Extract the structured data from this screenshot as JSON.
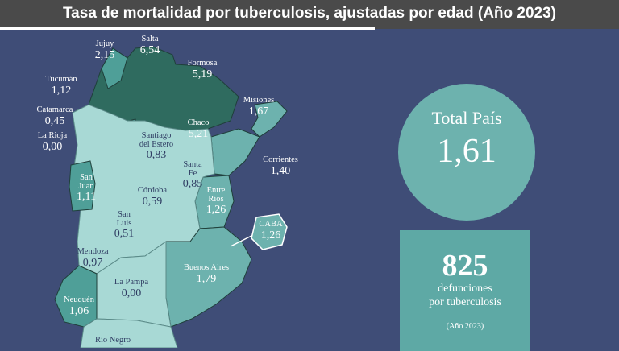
{
  "header": {
    "title": "Tasa de mortalidad por tuberculosis, ajustadas por edad (Año 2023)"
  },
  "colors": {
    "background": "#3f4d77",
    "dark_teal": "#2f6b5f",
    "mid_teal": "#4f9f98",
    "light_teal": "#a8d9d5",
    "circle": "#6db2ae"
  },
  "map": {
    "provinces": [
      {
        "name": "Jujuy",
        "value": "2,15"
      },
      {
        "name": "Salta",
        "value": "6,54"
      },
      {
        "name": "Formosa",
        "value": "5,19"
      },
      {
        "name": "Tucumán",
        "value": "1,12"
      },
      {
        "name": "Catamarca",
        "value": "0,45"
      },
      {
        "name": "La Rioja",
        "value": "0,00"
      },
      {
        "name": "Misiones",
        "value": "1,67"
      },
      {
        "name": "Chaco",
        "value": "5,21"
      },
      {
        "name": "Santiago del Estero",
        "value": "0,83"
      },
      {
        "name": "Corrientes",
        "value": "1,40"
      },
      {
        "name": "Santa Fe",
        "value": "0,85"
      },
      {
        "name": "San Juan",
        "value": "1,11"
      },
      {
        "name": "Córdoba",
        "value": "0,59"
      },
      {
        "name": "Entre Ríos",
        "value": "1,26"
      },
      {
        "name": "San Luis",
        "value": "0,51"
      },
      {
        "name": "CABA",
        "value": "1,26"
      },
      {
        "name": "Mendoza",
        "value": "0,97"
      },
      {
        "name": "Buenos Aires",
        "value": "1,79"
      },
      {
        "name": "La Pampa",
        "value": "0,00"
      },
      {
        "name": "Neuquén",
        "value": "1,06"
      },
      {
        "name": "Río Negro",
        "value": ""
      }
    ]
  },
  "summary": {
    "total_label": "Total País",
    "total_value": "1,61",
    "deaths_number": "825",
    "deaths_text_line1": "defunciones",
    "deaths_text_line2": "por tuberculosis",
    "deaths_year": "(Año 2023)"
  }
}
